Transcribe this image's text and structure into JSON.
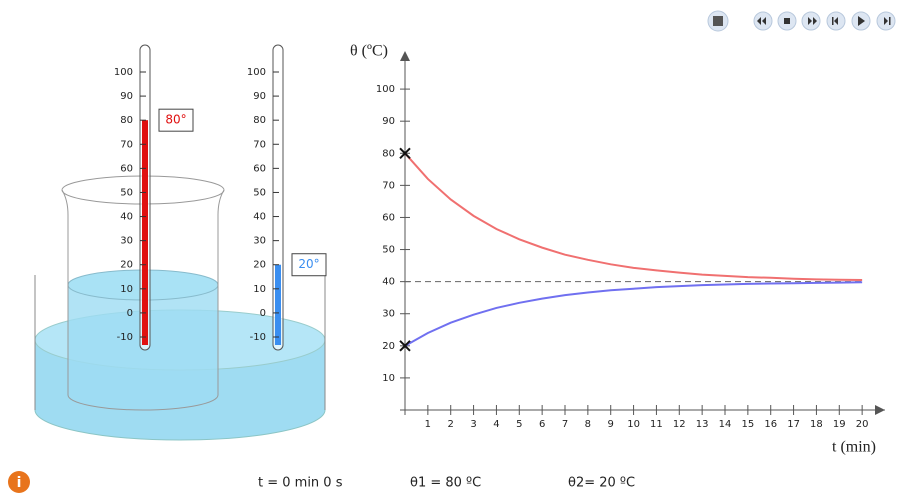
{
  "chart_data": {
    "type": "line",
    "y_label": "θ (ºC)",
    "x_label": "t (min)",
    "x": [
      0,
      1,
      2,
      3,
      4,
      5,
      6,
      7,
      8,
      9,
      10,
      11,
      12,
      13,
      14,
      15,
      16,
      17,
      18,
      19,
      20
    ],
    "series": [
      {
        "color": "#f07070",
        "values": [
          80,
          72.0,
          65.6,
          60.5,
          56.4,
          53.2,
          50.6,
          48.4,
          46.8,
          45.4,
          44.3,
          43.5,
          42.8,
          42.2,
          41.8,
          41.4,
          41.2,
          40.9,
          40.7,
          40.6,
          40.5
        ]
      },
      {
        "color": "#7070f0",
        "values": [
          20,
          24.0,
          27.2,
          29.7,
          31.8,
          33.4,
          34.7,
          35.8,
          36.6,
          37.3,
          37.8,
          38.3,
          38.6,
          38.9,
          39.1,
          39.3,
          39.4,
          39.5,
          39.6,
          39.7,
          39.8
        ]
      }
    ],
    "hline": 40,
    "xlim": [
      0,
      21
    ],
    "ylim": [
      0,
      110
    ],
    "xticks": [
      1,
      2,
      3,
      4,
      5,
      6,
      7,
      8,
      9,
      10,
      11,
      12,
      13,
      14,
      15,
      16,
      17,
      18,
      19,
      20
    ],
    "yticks": [
      10,
      20,
      30,
      40,
      50,
      60,
      70,
      80,
      90,
      100
    ]
  },
  "thermometers": [
    {
      "ticks": [
        100,
        90,
        80,
        70,
        60,
        50,
        40,
        30,
        20,
        10,
        0,
        -10
      ],
      "reading": 80,
      "label": "80°",
      "color": "#e01010"
    },
    {
      "ticks": [
        100,
        90,
        80,
        70,
        60,
        50,
        40,
        30,
        20,
        10,
        0,
        -10
      ],
      "reading": 20,
      "label": "20°",
      "color": "#3a8ef0"
    }
  ],
  "status": {
    "time": "t = 0 min 0 s",
    "theta1": "θ1 = 80 ºC",
    "theta2": "θ2= 20 ºC"
  }
}
